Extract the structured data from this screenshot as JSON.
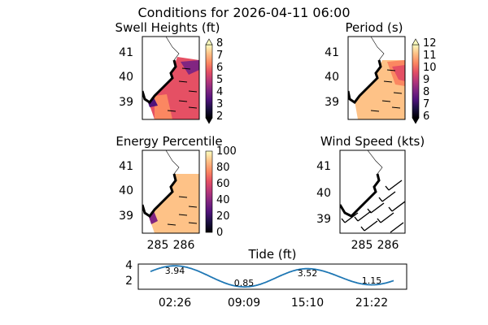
{
  "title": "Conditions for 2026-04-11 06:00",
  "colors": {
    "land": "#000000",
    "tide_line": "#1f77b4",
    "arrow": "#000000"
  },
  "chart_data": [
    {
      "type": "heatmap",
      "title": "Swell Heights (ft)",
      "ylim": [
        38.2,
        41.6
      ],
      "xlim": [
        284.6,
        286.4
      ],
      "yticks": [
        "39",
        "40",
        "41"
      ],
      "colorbar": {
        "cmap": "magma",
        "ticks": [
          "2",
          "3",
          "4",
          "5",
          "6",
          "7",
          "8"
        ],
        "range": [
          2,
          8
        ],
        "extend": "both"
      },
      "grid": false
    },
    {
      "type": "heatmap",
      "title": "Period (s)",
      "ylim": [
        38.2,
        41.6
      ],
      "xlim": [
        284.6,
        286.4
      ],
      "yticks": [
        "39",
        "40",
        "41"
      ],
      "colorbar": {
        "cmap": "magma",
        "ticks": [
          "6",
          "7",
          "8",
          "9",
          "10",
          "11",
          "12"
        ],
        "range": [
          6,
          12
        ],
        "extend": "both"
      },
      "grid": false
    },
    {
      "type": "heatmap",
      "title": "Energy Percentile",
      "ylim": [
        38.2,
        41.6
      ],
      "xlim": [
        284.6,
        286.4
      ],
      "yticks": [
        "39",
        "40",
        "41"
      ],
      "xticks": [
        "285",
        "286"
      ],
      "colorbar": {
        "cmap": "magma",
        "ticks": [
          "0",
          "20",
          "40",
          "60",
          "80",
          "100"
        ],
        "range": [
          0,
          100
        ]
      },
      "grid": false
    },
    {
      "type": "scatter",
      "title": "Wind Speed (kts)",
      "ylim": [
        38.2,
        41.6
      ],
      "xlim": [
        284.6,
        286.4
      ],
      "yticks": [
        "39",
        "40",
        "41"
      ],
      "xticks": [
        "285",
        "286"
      ],
      "grid": false
    },
    {
      "type": "line",
      "title": "Tide (ft)",
      "ylim": [
        0.5,
        4.2
      ],
      "yticks": [
        "2",
        "4"
      ],
      "xticks": [
        "02:26",
        "09:09",
        "15:10",
        "21:22"
      ],
      "extremes": [
        {
          "time": "02:26",
          "value": 3.94,
          "label": "3.94"
        },
        {
          "time": "09:09",
          "value": 0.85,
          "label": "0.85"
        },
        {
          "time": "15:10",
          "value": 3.52,
          "label": "3.52"
        },
        {
          "time": "21:22",
          "value": 1.15,
          "label": "1.15"
        }
      ],
      "grid": false
    }
  ]
}
